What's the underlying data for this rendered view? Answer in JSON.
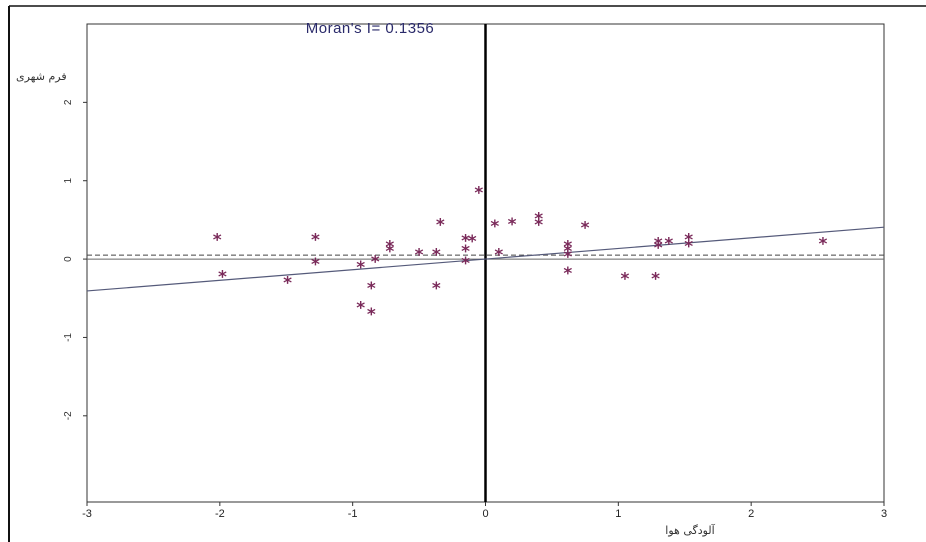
{
  "chart_data": {
    "type": "scatter",
    "title": "Moran's I= 0.1356",
    "xlabel": "آلودگی هوا",
    "ylabel": "فرم شهری",
    "xlim": [
      -3,
      3
    ],
    "ylim": [
      -3.1,
      3.0
    ],
    "x_ticks": [
      "-3",
      "-2",
      "-1",
      "0",
      "1",
      "2",
      "3"
    ],
    "y_ticks": [
      "2",
      "1",
      "0",
      "-1",
      "-2"
    ],
    "y_tick_values": [
      2,
      1,
      0,
      -1,
      -2
    ],
    "regression_slope": 0.1356,
    "mean_line_y": 0.05,
    "colors": {
      "points": "#7a2a5a",
      "frame": "#111111",
      "fit_line": "#555a7a"
    },
    "points": [
      {
        "x": -2.02,
        "y": 0.25
      },
      {
        "x": -1.98,
        "y": -0.22
      },
      {
        "x": -1.49,
        "y": -0.3
      },
      {
        "x": -1.28,
        "y": 0.25
      },
      {
        "x": -1.28,
        "y": -0.06
      },
      {
        "x": -0.94,
        "y": -0.62
      },
      {
        "x": -0.94,
        "y": -0.1
      },
      {
        "x": -0.86,
        "y": -0.37
      },
      {
        "x": -0.86,
        "y": -0.7
      },
      {
        "x": -0.83,
        "y": -0.03
      },
      {
        "x": -0.72,
        "y": 0.16
      },
      {
        "x": -0.72,
        "y": 0.1
      },
      {
        "x": -0.5,
        "y": 0.06
      },
      {
        "x": -0.37,
        "y": 0.06
      },
      {
        "x": -0.37,
        "y": -0.37
      },
      {
        "x": -0.34,
        "y": 0.44
      },
      {
        "x": -0.15,
        "y": 0.24
      },
      {
        "x": -0.15,
        "y": 0.1
      },
      {
        "x": -0.15,
        "y": -0.05
      },
      {
        "x": -0.1,
        "y": 0.23
      },
      {
        "x": -0.05,
        "y": 0.85
      },
      {
        "x": 0.07,
        "y": 0.42
      },
      {
        "x": 0.1,
        "y": 0.06
      },
      {
        "x": 0.2,
        "y": 0.45
      },
      {
        "x": 0.4,
        "y": 0.52
      },
      {
        "x": 0.4,
        "y": 0.44
      },
      {
        "x": 0.62,
        "y": 0.16
      },
      {
        "x": 0.62,
        "y": 0.1
      },
      {
        "x": 0.62,
        "y": 0.03
      },
      {
        "x": 0.62,
        "y": -0.18
      },
      {
        "x": 0.75,
        "y": 0.4
      },
      {
        "x": 1.05,
        "y": -0.25
      },
      {
        "x": 1.28,
        "y": -0.25
      },
      {
        "x": 1.3,
        "y": 0.2
      },
      {
        "x": 1.3,
        "y": 0.15
      },
      {
        "x": 1.38,
        "y": 0.2
      },
      {
        "x": 1.53,
        "y": 0.25
      },
      {
        "x": 1.53,
        "y": 0.17
      },
      {
        "x": 2.54,
        "y": 0.2
      }
    ]
  }
}
